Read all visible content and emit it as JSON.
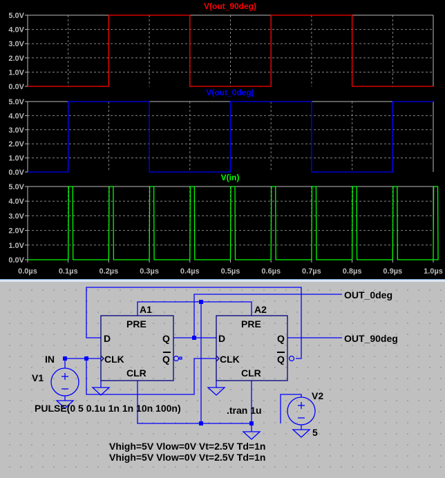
{
  "chart_data": [
    {
      "type": "line",
      "title": "V(out_90deg)",
      "color": "#ff0000",
      "x_unit": "µs",
      "xlim": [
        0,
        1
      ],
      "ylim": [
        0,
        5
      ],
      "grid": true,
      "yticks": [
        "0.0V",
        "1.0V",
        "2.0V",
        "3.0V",
        "4.0V",
        "5.0V"
      ],
      "x": [
        0,
        0.2,
        0.2,
        0.4,
        0.4,
        0.6,
        0.6,
        0.8,
        0.8,
        1.0
      ],
      "y": [
        0,
        0,
        5,
        5,
        0,
        0,
        5,
        5,
        0,
        0
      ]
    },
    {
      "type": "line",
      "title": "V(out_0deg)",
      "color": "#0000ff",
      "x_unit": "µs",
      "xlim": [
        0,
        1
      ],
      "ylim": [
        0,
        5
      ],
      "grid": true,
      "yticks": [
        "0.0V",
        "1.0V",
        "2.0V",
        "3.0V",
        "4.0V",
        "5.0V"
      ],
      "x": [
        0,
        0.1,
        0.1,
        0.3,
        0.3,
        0.5,
        0.5,
        0.7,
        0.7,
        0.9,
        0.9,
        1.0
      ],
      "y": [
        0,
        0,
        5,
        5,
        0,
        0,
        5,
        5,
        0,
        0,
        5,
        5
      ]
    },
    {
      "type": "line",
      "title": "V(in)",
      "color": "#00ff00",
      "x_unit": "µs",
      "xlim": [
        0,
        1
      ],
      "ylim": [
        0,
        5
      ],
      "grid": true,
      "yticks": [
        "0.0V",
        "1.0V",
        "2.0V",
        "3.0V",
        "4.0V",
        "5.0V"
      ],
      "xticks": [
        "0.0µs",
        "0.1µs",
        "0.2µs",
        "0.3µs",
        "0.4µs",
        "0.5µs",
        "0.6µs",
        "0.7µs",
        "0.8µs",
        "0.9µs",
        "1.0µs"
      ],
      "pulse": {
        "v1": 0,
        "v2": 5,
        "delay": 0.1,
        "rise": 0.001,
        "fall": 0.001,
        "width": 0.01,
        "period": 0.1
      }
    }
  ],
  "schematic": {
    "a1": "A1",
    "a2": "A2",
    "pre": "PRE",
    "clr": "CLR",
    "d": "D",
    "q": "Q",
    "qbar": "Q",
    "clk": "CLK",
    "in_label": "IN",
    "v1": "V1",
    "v2": "V2",
    "v2_value": "5",
    "pulse": "PULSE(0 5 0.1u 1n 1n 10n 100n)",
    "tran": ".tran 1u",
    "out0": "OUT_0deg",
    "out90": "OUT_90deg",
    "model1": "Vhigh=5V Vlow=0V Vt=2.5V Td=1n",
    "model2": "Vhigh=5V Vlow=0V Vt=2.5V Td=1n",
    "wire_color": "#0000ff",
    "text_color": "#000000"
  }
}
